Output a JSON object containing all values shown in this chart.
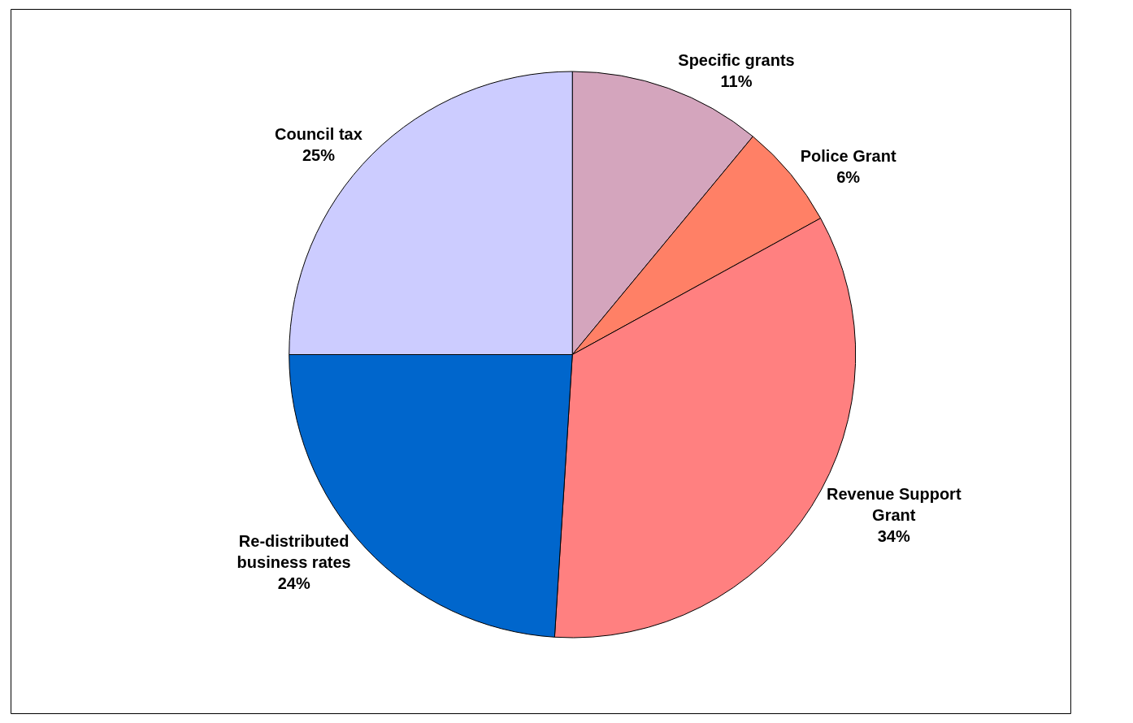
{
  "chart_data": {
    "type": "pie",
    "categories": [
      "Specific grants",
      "Police Grant",
      "Revenue Support Grant",
      "Re-distributed business rates",
      "Council tax"
    ],
    "values": [
      11,
      6,
      34,
      24,
      25
    ],
    "colors": [
      "#d4a5bd",
      "#ff8066",
      "#ff8080",
      "#0066cc",
      "#ccccff"
    ],
    "value_labels": [
      "11%",
      "6%",
      "34%",
      "24%",
      "25%"
    ],
    "legend": false
  }
}
